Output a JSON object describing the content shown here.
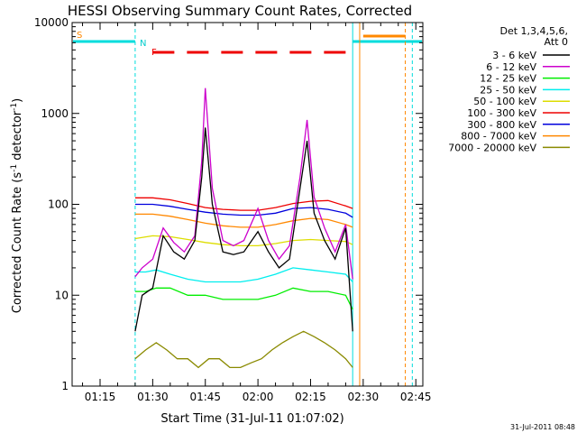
{
  "chart_data": {
    "type": "line",
    "title": "HESSI Observing Summary Count Rates, Corrected",
    "xlabel": "Start Time (31-Jul-11 01:07:02)",
    "ylabel": "Corrected Count Rate (s",
    "ylabel_sup1": "-1",
    "ylabel_mid": " detector",
    "ylabel_sup2": "-1",
    "ylabel_end": ")",
    "y_scale": "log",
    "xlim": [
      "01:07:02",
      "02:47:00"
    ],
    "ylim": [
      1,
      10000
    ],
    "x_ticks": [
      "01:15",
      "01:30",
      "01:45",
      "02:00",
      "02:15",
      "02:30",
      "02:45"
    ],
    "y_ticks": [
      "1",
      "10",
      "100",
      "1000",
      "10000"
    ],
    "legend": {
      "header1": "Det 1,3,4,5,6,",
      "header2": "Att 0",
      "position": "right"
    },
    "series": [
      {
        "name": "3 - 6 keV",
        "color": "#000000",
        "x": [
          "01:25",
          "01:27",
          "01:30",
          "01:33",
          "01:36",
          "01:39",
          "01:42",
          "01:44",
          "01:45",
          "01:47",
          "01:50",
          "01:53",
          "01:56",
          "02:00",
          "02:03",
          "02:06",
          "02:09",
          "02:12",
          "02:14",
          "02:16",
          "02:19",
          "02:22",
          "02:25",
          "02:27"
        ],
        "y": [
          4,
          10,
          12,
          45,
          30,
          25,
          40,
          200,
          700,
          100,
          30,
          28,
          30,
          50,
          30,
          20,
          25,
          150,
          500,
          80,
          40,
          25,
          55,
          4
        ]
      },
      {
        "name": "6 - 12 keV",
        "color": "#cc00cc",
        "x": [
          "01:25",
          "01:27",
          "01:30",
          "01:33",
          "01:36",
          "01:39",
          "01:42",
          "01:44",
          "01:45",
          "01:47",
          "01:50",
          "01:53",
          "01:56",
          "02:00",
          "02:03",
          "02:06",
          "02:09",
          "02:12",
          "02:14",
          "02:16",
          "02:19",
          "02:22",
          "02:25",
          "02:27"
        ],
        "y": [
          16,
          20,
          25,
          55,
          38,
          30,
          45,
          300,
          1900,
          150,
          40,
          35,
          40,
          90,
          40,
          25,
          35,
          200,
          850,
          120,
          55,
          30,
          60,
          15
        ]
      },
      {
        "name": "12 - 25 keV",
        "color": "#00ee00",
        "x": [
          "01:25",
          "01:28",
          "01:31",
          "01:35",
          "01:40",
          "01:45",
          "01:50",
          "01:55",
          "02:00",
          "02:05",
          "02:10",
          "02:15",
          "02:20",
          "02:25",
          "02:27"
        ],
        "y": [
          11,
          11,
          12,
          12,
          10,
          10,
          9,
          9,
          9,
          10,
          12,
          11,
          11,
          10,
          7
        ]
      },
      {
        "name": "25 - 50 keV",
        "color": "#00eeee",
        "x": [
          "01:25",
          "01:28",
          "01:31",
          "01:35",
          "01:40",
          "01:45",
          "01:50",
          "01:55",
          "02:00",
          "02:05",
          "02:10",
          "02:15",
          "02:20",
          "02:25",
          "02:27"
        ],
        "y": [
          18,
          18,
          19,
          17,
          15,
          14,
          14,
          14,
          15,
          17,
          20,
          19,
          18,
          17,
          14
        ]
      },
      {
        "name": "50 - 100 keV",
        "color": "#dddd00",
        "x": [
          "01:25",
          "01:30",
          "01:35",
          "01:40",
          "01:45",
          "01:50",
          "01:55",
          "02:00",
          "02:05",
          "02:10",
          "02:15",
          "02:20",
          "02:25",
          "02:27"
        ],
        "y": [
          42,
          45,
          44,
          41,
          38,
          36,
          35,
          35,
          37,
          40,
          41,
          40,
          39,
          36
        ]
      },
      {
        "name": "100 - 300 keV",
        "color": "#ee0000",
        "x": [
          "01:25",
          "01:30",
          "01:35",
          "01:40",
          "01:45",
          "01:50",
          "01:55",
          "02:00",
          "02:05",
          "02:10",
          "02:15",
          "02:20",
          "02:25",
          "02:27"
        ],
        "y": [
          118,
          118,
          112,
          102,
          92,
          88,
          86,
          86,
          92,
          102,
          108,
          110,
          96,
          90
        ]
      },
      {
        "name": "300 - 800 keV",
        "color": "#0000dd",
        "x": [
          "01:25",
          "01:30",
          "01:35",
          "01:40",
          "01:45",
          "01:50",
          "01:55",
          "02:00",
          "02:05",
          "02:10",
          "02:15",
          "02:20",
          "02:25",
          "02:27"
        ],
        "y": [
          100,
          100,
          95,
          88,
          82,
          78,
          76,
          76,
          80,
          90,
          92,
          88,
          80,
          72
        ]
      },
      {
        "name": "800 - 7000 keV",
        "color": "#ff8800",
        "x": [
          "01:25",
          "01:30",
          "01:35",
          "01:40",
          "01:45",
          "01:50",
          "01:55",
          "02:00",
          "02:05",
          "02:10",
          "02:15",
          "02:20",
          "02:25",
          "02:27"
        ],
        "y": [
          78,
          78,
          74,
          68,
          62,
          58,
          56,
          56,
          60,
          66,
          70,
          68,
          60,
          56
        ]
      },
      {
        "name": "7000 - 20000 keV",
        "color": "#8a8a00",
        "x": [
          "01:25",
          "01:28",
          "01:31",
          "01:34",
          "01:37",
          "01:40",
          "01:43",
          "01:46",
          "01:49",
          "01:52",
          "01:55",
          "01:58",
          "02:01",
          "02:04",
          "02:07",
          "02:10",
          "02:13",
          "02:16",
          "02:19",
          "02:22",
          "02:25",
          "02:27"
        ],
        "y": [
          2,
          2.5,
          3,
          2.5,
          2,
          2,
          1.6,
          2,
          2,
          1.6,
          1.6,
          1.8,
          2,
          2.5,
          3,
          3.5,
          4,
          3.5,
          3,
          2.5,
          2,
          1.6
        ]
      }
    ],
    "annotations": {
      "s_label": "S",
      "n_label": "N",
      "f_label": "F"
    }
  },
  "timestamp": "31-Jul-2011 08:48"
}
